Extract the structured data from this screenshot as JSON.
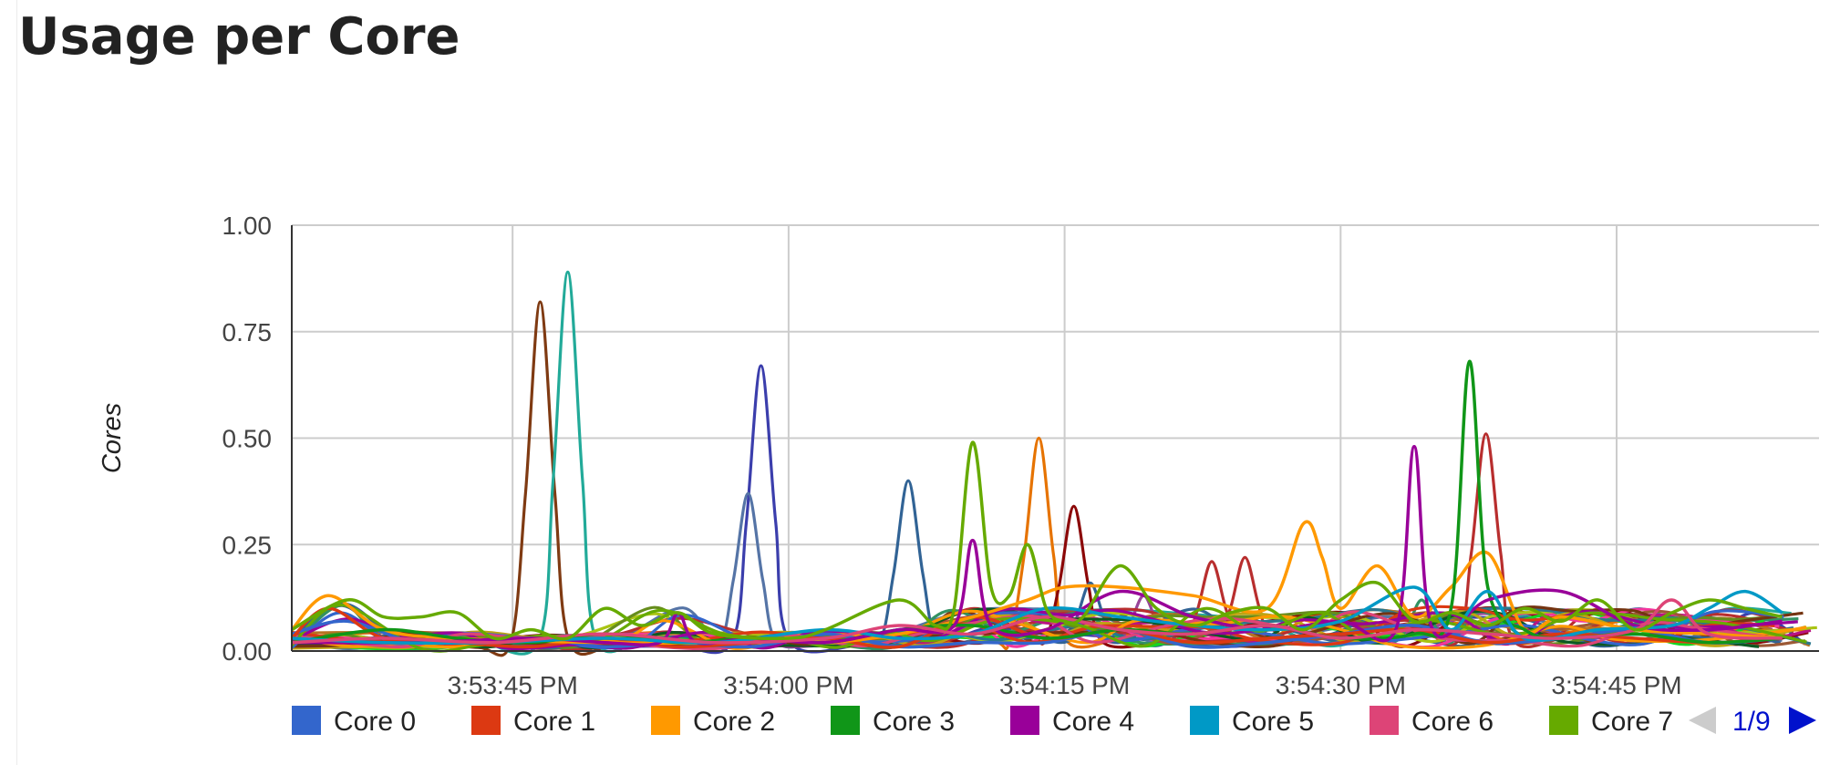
{
  "page": {
    "title": "Usage per Core"
  },
  "legend": {
    "page": "1/9"
  },
  "icons": {
    "prev": "triangle-left-icon",
    "next": "triangle-right-icon"
  },
  "chart_data": {
    "type": "line",
    "ylabel": "Cores",
    "xlabel": "",
    "ylim": [
      0,
      1
    ],
    "yticks": [
      "0.00",
      "0.25",
      "0.50",
      "0.75",
      "1.00"
    ],
    "xlim": [
      "3:53:33 PM",
      "3:54:56 PM"
    ],
    "xticks": [
      "3:53:45 PM",
      "3:54:00 PM",
      "3:54:15 PM",
      "3:54:30 PM",
      "3:54:45 PM"
    ],
    "grid": true,
    "legend_position": "bottom",
    "series": [
      {
        "name": "Core 0",
        "color": "#3366cc",
        "x": [
          33,
          36,
          40,
          46,
          50,
          54,
          58,
          62,
          66,
          70,
          74,
          78,
          82,
          86,
          90,
          94,
          98,
          102,
          106,
          110,
          114
        ],
        "y": [
          0.04,
          0.07,
          0.02,
          0.03,
          0.01,
          0.02,
          0.01,
          0.04,
          0.01,
          0.02,
          0.02,
          0.05,
          0.01,
          0.02,
          0.04,
          0.06,
          0.02,
          0.03,
          0.05,
          0.02,
          0.03
        ]
      },
      {
        "name": "Core 1",
        "color": "#dc3912",
        "x": [
          33,
          35,
          38,
          42,
          46,
          50,
          54,
          58,
          62,
          66,
          70,
          74,
          78,
          82,
          86,
          90,
          94,
          98,
          102,
          106,
          110,
          114
        ],
        "y": [
          0.03,
          0.1,
          0.03,
          0.02,
          0.01,
          0.03,
          0.01,
          0.02,
          0.03,
          0.01,
          0.08,
          0.03,
          0.05,
          0.02,
          0.03,
          0.04,
          0.05,
          0.02,
          0.04,
          0.03,
          0.02,
          0.03
        ]
      },
      {
        "name": "Core 2",
        "color": "#ff9900",
        "x": [
          33,
          35,
          38,
          42,
          50,
          56,
          58,
          62,
          66,
          70,
          73,
          75,
          78,
          82,
          86,
          88,
          89,
          90,
          92,
          94,
          96,
          98,
          100,
          102,
          106,
          110,
          114
        ],
        "y": [
          0.05,
          0.13,
          0.05,
          0.03,
          0.02,
          0.02,
          0.03,
          0.02,
          0.04,
          0.08,
          0.12,
          0.15,
          0.15,
          0.13,
          0.1,
          0.3,
          0.22,
          0.1,
          0.2,
          0.08,
          0.15,
          0.23,
          0.05,
          0.08,
          0.05,
          0.04,
          0.03
        ]
      },
      {
        "name": "Core 3",
        "color": "#109618",
        "x": [
          33,
          38,
          42,
          46,
          50,
          54,
          58,
          62,
          66,
          70,
          74,
          78,
          82,
          86,
          90,
          94,
          96,
          97,
          98,
          100,
          102,
          106,
          110,
          114
        ],
        "y": [
          0.02,
          0.05,
          0.03,
          0.02,
          0.04,
          0.02,
          0.03,
          0.02,
          0.05,
          0.06,
          0.03,
          0.05,
          0.04,
          0.06,
          0.03,
          0.04,
          0.1,
          0.68,
          0.15,
          0.05,
          0.03,
          0.04,
          0.02,
          0.03
        ]
      },
      {
        "name": "Core 4",
        "color": "#990099",
        "x": [
          33,
          40,
          46,
          50,
          53,
          54,
          55,
          58,
          62,
          66,
          69,
          70,
          71,
          74,
          78,
          82,
          86,
          90,
          93,
          94,
          95,
          98,
          102,
          106,
          110,
          114
        ],
        "y": [
          0.02,
          0.02,
          0.03,
          0.02,
          0.02,
          0.09,
          0.02,
          0.03,
          0.02,
          0.05,
          0.06,
          0.26,
          0.06,
          0.05,
          0.14,
          0.08,
          0.05,
          0.07,
          0.05,
          0.48,
          0.05,
          0.12,
          0.14,
          0.06,
          0.05,
          0.07
        ]
      },
      {
        "name": "Core 5",
        "color": "#0099c6",
        "x": [
          33,
          38,
          44,
          50,
          56,
          62,
          66,
          70,
          74,
          78,
          82,
          86,
          90,
          94,
          96,
          98,
          100,
          104,
          108,
          110,
          112,
          114
        ],
        "y": [
          0.03,
          0.02,
          0.02,
          0.03,
          0.02,
          0.05,
          0.03,
          0.04,
          0.1,
          0.08,
          0.06,
          0.05,
          0.07,
          0.15,
          0.05,
          0.14,
          0.03,
          0.05,
          0.06,
          0.1,
          0.14,
          0.09
        ]
      },
      {
        "name": "Core 6",
        "color": "#dd4477",
        "x": [
          33,
          38,
          44,
          50,
          56,
          62,
          66,
          70,
          74,
          78,
          82,
          86,
          90,
          94,
          98,
          102,
          106,
          108,
          110,
          114
        ],
        "y": [
          0.02,
          0.03,
          0.02,
          0.04,
          0.02,
          0.03,
          0.06,
          0.04,
          0.08,
          0.05,
          0.04,
          0.06,
          0.03,
          0.05,
          0.04,
          0.03,
          0.05,
          0.12,
          0.04,
          0.03
        ]
      },
      {
        "name": "Core 7",
        "color": "#66aa00",
        "x": [
          33,
          36,
          38,
          40,
          42,
          44,
          46,
          48,
          50,
          52,
          54,
          56,
          60,
          62,
          66,
          68,
          69,
          70,
          71,
          72,
          73,
          74,
          75,
          76,
          78,
          80,
          82,
          84,
          86,
          88,
          90,
          92,
          94,
          96,
          98,
          100,
          102,
          104,
          106,
          108,
          110,
          112,
          114
        ],
        "y": [
          0.05,
          0.12,
          0.08,
          0.08,
          0.09,
          0.03,
          0.05,
          0.03,
          0.1,
          0.06,
          0.09,
          0.04,
          0.03,
          0.05,
          0.12,
          0.06,
          0.1,
          0.49,
          0.15,
          0.13,
          0.25,
          0.1,
          0.07,
          0.08,
          0.2,
          0.1,
          0.06,
          0.09,
          0.1,
          0.05,
          0.12,
          0.16,
          0.07,
          0.09,
          0.06,
          0.1,
          0.07,
          0.12,
          0.05,
          0.09,
          0.12,
          0.1,
          0.08
        ]
      }
    ]
  }
}
